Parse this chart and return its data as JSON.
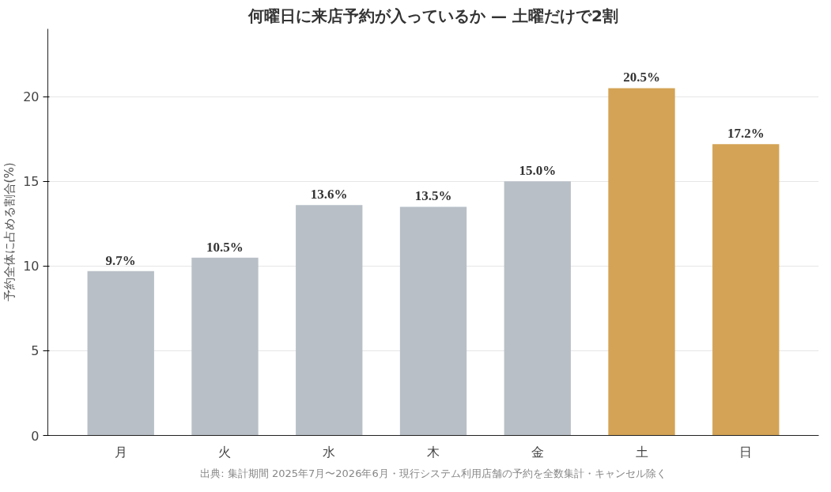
{
  "chart_data": {
    "type": "bar",
    "title": "何曜日に来店予約が入っているか — 土曜だけで2割",
    "ylabel": "予約全体に占める割合(%)",
    "categories": [
      "月",
      "火",
      "水",
      "木",
      "金",
      "土",
      "日"
    ],
    "values": [
      9.7,
      10.5,
      13.6,
      13.5,
      15.0,
      20.5,
      17.2
    ],
    "value_labels": [
      "9.7%",
      "10.5%",
      "13.6%",
      "13.5%",
      "15.0%",
      "20.5%",
      "17.2%"
    ],
    "colors": [
      "#b8bfc7",
      "#b8bfc7",
      "#b8bfc7",
      "#b8bfc7",
      "#b8bfc7",
      "#d4a355",
      "#d4a355"
    ],
    "ylim": [
      0,
      24
    ],
    "yticks": [
      0,
      5,
      10,
      15,
      20
    ],
    "grid": "y",
    "annotations": [
      "出典: 集計期間 2025年7月〜2026年6月・現行システム利用店舗の予約を全数集計・キャンセル除く"
    ]
  }
}
